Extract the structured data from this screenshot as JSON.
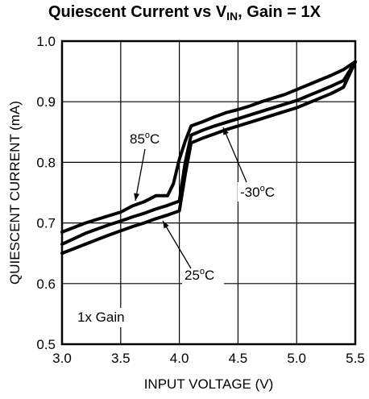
{
  "chart_data": {
    "type": "line",
    "title_main": "Quiescent Current vs V",
    "title_sub": "IN",
    "title_rest": ", Gain = 1X",
    "xlabel": "INPUT VOLTAGE (V)",
    "ylabel": "QUIESCENT CURRENT (mA)",
    "xlim": [
      3.0,
      5.5
    ],
    "ylim": [
      0.5,
      1.0
    ],
    "x_ticks": [
      "3.0",
      "3.5",
      "4.0",
      "4.5",
      "5.0",
      "5.5"
    ],
    "y_ticks": [
      "0.5",
      "0.6",
      "0.7",
      "0.8",
      "0.9",
      "1.0"
    ],
    "grid": true,
    "note": "1x Gain",
    "series": [
      {
        "name": "85oC",
        "label_text": "85",
        "label_sup": "o",
        "label_unit": "C",
        "x": [
          3.0,
          3.2,
          3.4,
          3.5,
          3.6,
          3.7,
          3.8,
          3.9,
          3.95,
          4.0,
          4.05,
          4.1,
          4.2,
          4.3,
          4.4,
          4.5,
          4.6,
          4.7,
          4.8,
          4.9,
          5.0,
          5.1,
          5.2,
          5.3,
          5.4,
          5.5
        ],
        "values": [
          0.685,
          0.7,
          0.712,
          0.718,
          0.728,
          0.735,
          0.745,
          0.745,
          0.765,
          0.805,
          0.835,
          0.86,
          0.867,
          0.875,
          0.882,
          0.887,
          0.893,
          0.9,
          0.906,
          0.912,
          0.92,
          0.928,
          0.936,
          0.944,
          0.953,
          0.966
        ]
      },
      {
        "name": "-30oC",
        "label_text": "-30",
        "label_sup": "o",
        "label_unit": "C",
        "x": [
          3.0,
          3.2,
          3.4,
          3.5,
          3.6,
          3.7,
          3.8,
          3.9,
          4.0,
          4.05,
          4.1,
          4.2,
          4.3,
          4.4,
          4.5,
          4.6,
          4.7,
          4.8,
          4.9,
          5.0,
          5.1,
          5.2,
          5.3,
          5.4,
          5.5
        ],
        "values": [
          0.665,
          0.683,
          0.697,
          0.703,
          0.71,
          0.716,
          0.723,
          0.729,
          0.736,
          0.8,
          0.845,
          0.853,
          0.86,
          0.866,
          0.872,
          0.878,
          0.884,
          0.89,
          0.896,
          0.902,
          0.91,
          0.918,
          0.926,
          0.935,
          0.966
        ]
      },
      {
        "name": "25oC",
        "label_text": "25",
        "label_sup": "o",
        "label_unit": "C",
        "x": [
          3.0,
          3.2,
          3.4,
          3.5,
          3.6,
          3.7,
          3.8,
          3.9,
          4.0,
          4.05,
          4.1,
          4.2,
          4.3,
          4.4,
          4.5,
          4.6,
          4.7,
          4.8,
          4.9,
          5.0,
          5.1,
          5.2,
          5.3,
          5.4,
          5.5
        ],
        "values": [
          0.65,
          0.665,
          0.68,
          0.687,
          0.694,
          0.7,
          0.707,
          0.713,
          0.72,
          0.78,
          0.832,
          0.84,
          0.847,
          0.854,
          0.86,
          0.866,
          0.872,
          0.878,
          0.884,
          0.89,
          0.898,
          0.906,
          0.914,
          0.924,
          0.966
        ]
      }
    ]
  }
}
